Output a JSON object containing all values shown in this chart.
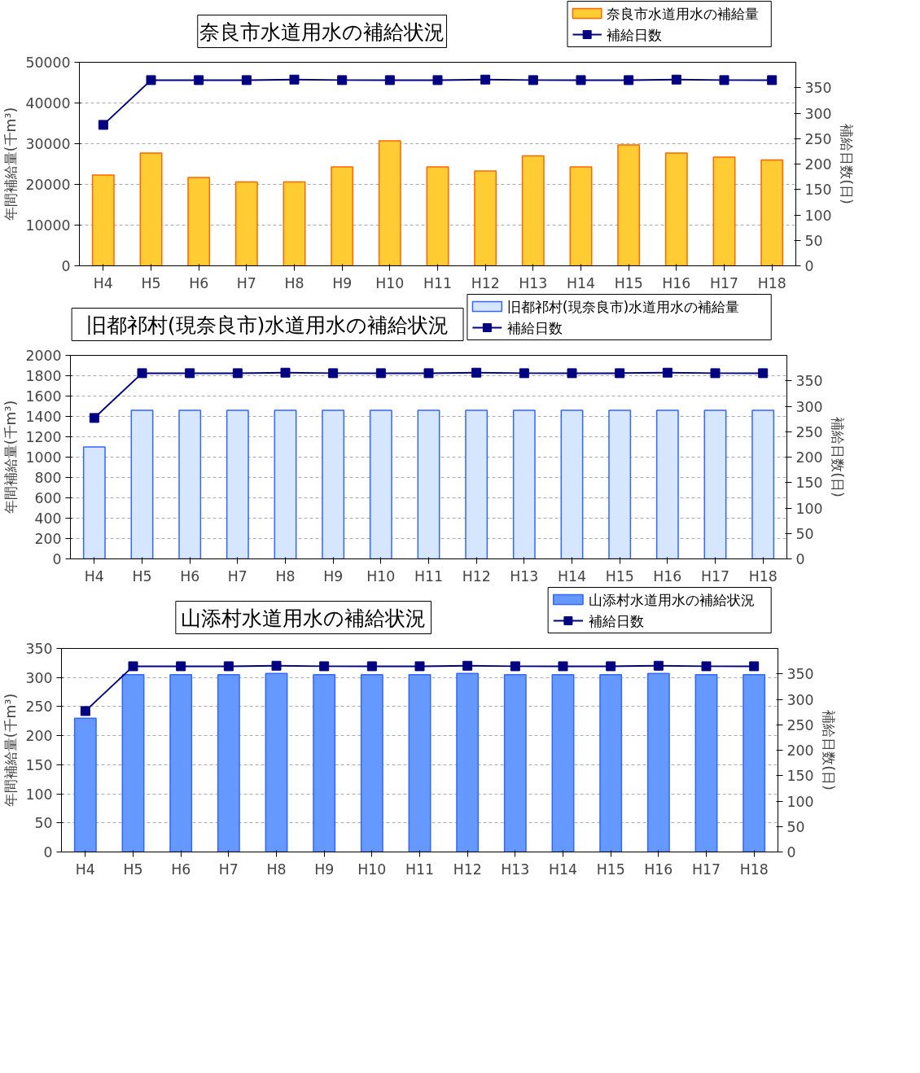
{
  "chart_data": [
    {
      "type": "bar",
      "title": "奈良市水道用水の補給状況",
      "ylabel": "年間補給量(千m³)",
      "y2label": "補給日数(日)",
      "categories": [
        "H4",
        "H5",
        "H6",
        "H7",
        "H8",
        "H9",
        "H10",
        "H11",
        "H12",
        "H13",
        "H14",
        "H15",
        "H16",
        "H17",
        "H18"
      ],
      "ylim": [
        0,
        50000
      ],
      "yticks": [
        0,
        10000,
        20000,
        30000,
        40000,
        50000
      ],
      "y2lim": [
        0,
        400
      ],
      "y2ticks": [
        0,
        50,
        100,
        150,
        200,
        250,
        300,
        350
      ],
      "grid": "y",
      "legend": "top right",
      "marker": "square",
      "line_style": "solid",
      "series": [
        {
          "type": "bar",
          "name": "奈良市水道用水の補給量",
          "color": "#ffcc33",
          "values": [
            22300,
            27700,
            21700,
            20600,
            20600,
            24300,
            30700,
            24300,
            23300,
            27000,
            24300,
            29700,
            27700,
            26700,
            26000
          ]
        },
        {
          "type": "line",
          "name": "補給日数",
          "color": "#000080",
          "axis": "y2",
          "values": [
            277,
            365,
            365,
            365,
            366,
            365,
            365,
            365,
            366,
            365,
            365,
            365,
            366,
            365,
            365
          ]
        }
      ]
    },
    {
      "type": "bar",
      "title": "旧都祁村(現奈良市)水道用水の補給状況",
      "ylabel": "年間補給量(千m³)",
      "y2label": "補給日数(日)",
      "categories": [
        "H4",
        "H5",
        "H6",
        "H7",
        "H8",
        "H9",
        "H10",
        "H11",
        "H12",
        "H13",
        "H14",
        "H15",
        "H16",
        "H17",
        "H18"
      ],
      "ylim": [
        0,
        2000
      ],
      "yticks": [
        0,
        200,
        400,
        600,
        800,
        1000,
        1200,
        1400,
        1600,
        1800,
        2000
      ],
      "y2lim": [
        0,
        400
      ],
      "y2ticks": [
        0,
        50,
        100,
        150,
        200,
        250,
        300,
        350
      ],
      "grid": "y",
      "legend": "top right",
      "marker": "square",
      "line_style": "solid",
      "series": [
        {
          "type": "bar",
          "name": "旧都祁村(現奈良市)水道用水の補給量",
          "color": "#d6e6ff",
          "values": [
            1100,
            1460,
            1460,
            1460,
            1460,
            1460,
            1460,
            1460,
            1460,
            1460,
            1460,
            1460,
            1460,
            1460,
            1460
          ]
        },
        {
          "type": "line",
          "name": "補給日数",
          "color": "#000080",
          "axis": "y2",
          "values": [
            277,
            365,
            365,
            365,
            366,
            365,
            365,
            365,
            366,
            365,
            365,
            365,
            366,
            365,
            365
          ]
        }
      ]
    },
    {
      "type": "bar",
      "title": "山添村水道用水の補給状況",
      "ylabel": "年間補給量(千m³)",
      "y2label": "補給日数(日)",
      "categories": [
        "H4",
        "H5",
        "H6",
        "H7",
        "H8",
        "H9",
        "H10",
        "H11",
        "H12",
        "H13",
        "H14",
        "H15",
        "H16",
        "H17",
        "H18"
      ],
      "ylim": [
        0,
        350
      ],
      "yticks": [
        0,
        50,
        100,
        150,
        200,
        250,
        300,
        350
      ],
      "y2lim": [
        0,
        400
      ],
      "y2ticks": [
        0,
        50,
        100,
        150,
        200,
        250,
        300,
        350
      ],
      "grid": "y",
      "legend": "top right",
      "marker": "square",
      "line_style": "solid",
      "series": [
        {
          "type": "bar",
          "name": "山添村水道用水の補給状況",
          "color": "#6699ff",
          "values": [
            230,
            305,
            305,
            305,
            307,
            305,
            305,
            305,
            307,
            305,
            305,
            305,
            307,
            305,
            305
          ]
        },
        {
          "type": "line",
          "name": "補給日数",
          "color": "#000080",
          "axis": "y2",
          "values": [
            277,
            365,
            365,
            365,
            366,
            365,
            365,
            365,
            366,
            365,
            365,
            365,
            366,
            365,
            365
          ]
        }
      ]
    }
  ]
}
